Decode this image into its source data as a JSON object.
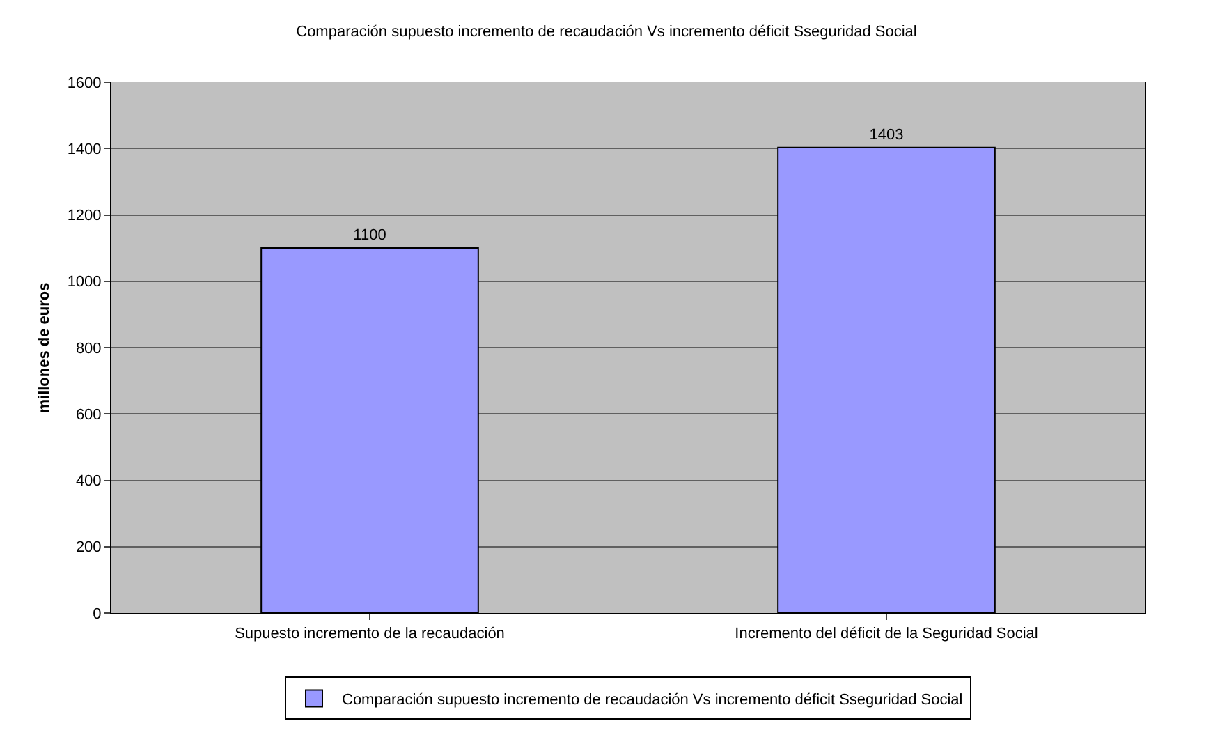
{
  "chart_data": {
    "type": "bar",
    "title": "Comparación supuesto incremento de recaudación Vs incremento déficit Sseguridad Social",
    "ylabel": "millones de euros",
    "categories": [
      "Supuesto incremento de la recaudación",
      "Incremento del déficit de la Seguridad Social"
    ],
    "series": [
      {
        "name": "Comparación supuesto incremento de recaudación Vs incremento déficit Sseguridad Social",
        "color": "#9999ff",
        "values": [
          1100,
          1403
        ]
      }
    ],
    "ylim": [
      0,
      1600
    ],
    "yticks": [
      0,
      200,
      400,
      600,
      800,
      1000,
      1200,
      1400,
      1600
    ],
    "grid": "y",
    "legend": "bottom",
    "data_labels": true
  }
}
